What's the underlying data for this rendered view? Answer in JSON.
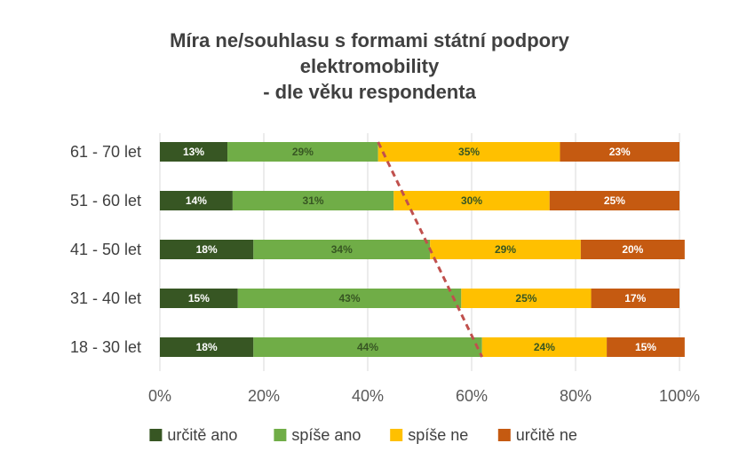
{
  "chart_data": {
    "type": "bar",
    "orientation": "horizontal",
    "stacked": "percent",
    "title_lines": [
      "Míra ne/souhlasu s formami  státní podpory",
      "elektromobility",
      "- dle věku respondenta"
    ],
    "categories": [
      "61 - 70 let",
      "51 - 60 let",
      "41 - 50 let",
      "31 - 40 let",
      "18 - 30 let"
    ],
    "series": [
      {
        "name": "určitě ano",
        "color": "#375623",
        "values": [
          13,
          14,
          18,
          15,
          18
        ],
        "labels": [
          "13%",
          "14%",
          "18%",
          "15%",
          "18%"
        ],
        "label_color": "#ffffff"
      },
      {
        "name": "spíše ano",
        "color": "#70ad47",
        "values": [
          29,
          31,
          34,
          43,
          44
        ],
        "labels": [
          "29%",
          "31%",
          "34%",
          "43%",
          "44%"
        ],
        "label_color": "#375623"
      },
      {
        "name": "spíše ne",
        "color": "#ffc000",
        "values": [
          35,
          30,
          29,
          25,
          24
        ],
        "labels": [
          "35%",
          "30%",
          "29%",
          "25%",
          "24%"
        ],
        "label_color": "#375623"
      },
      {
        "name": "určitě ne",
        "color": "#c55a11",
        "values": [
          23,
          25,
          20,
          17,
          15
        ],
        "labels": [
          "23%",
          "25%",
          "20%",
          "17%",
          "15%"
        ],
        "label_color": "#ffffff"
      }
    ],
    "xlim": [
      0,
      100
    ],
    "x_ticks": [
      "0%",
      "20%",
      "40%",
      "60%",
      "80%",
      "100%"
    ],
    "grid": true,
    "legend_position": "bottom",
    "annotation": {
      "type": "dashed trend line",
      "color": "#c0504d",
      "description_of_path": "boundary between spíše ano and spíše ne"
    }
  }
}
